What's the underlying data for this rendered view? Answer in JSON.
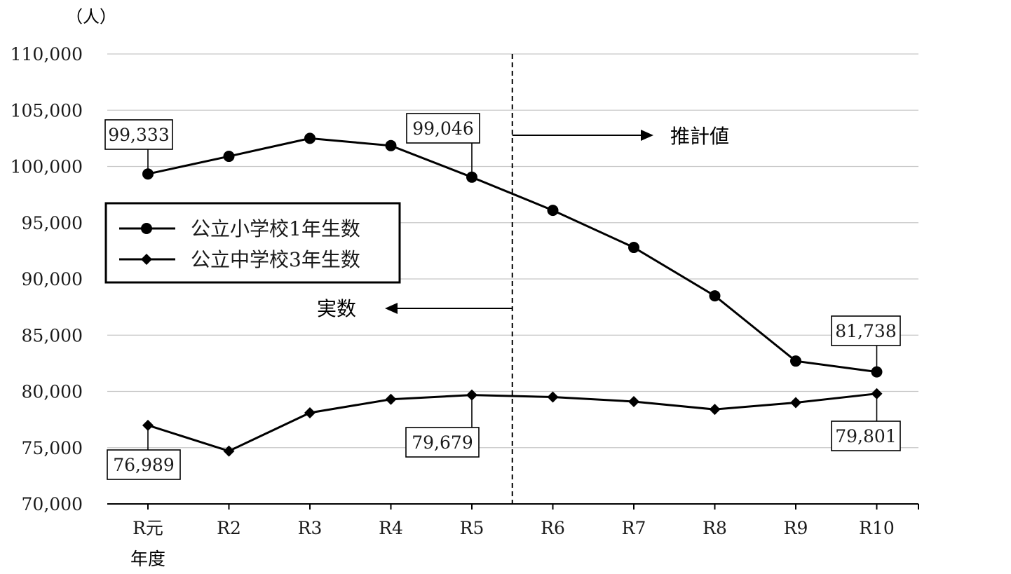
{
  "chart_data": {
    "type": "line",
    "unit_label": "（人）",
    "x_axis_extra_label": "年度",
    "categories": [
      "R元",
      "R2",
      "R3",
      "R4",
      "R5",
      "R6",
      "R7",
      "R8",
      "R9",
      "R10"
    ],
    "ylim": [
      70000,
      110000
    ],
    "yticks": [
      70000,
      75000,
      80000,
      85000,
      90000,
      95000,
      100000,
      105000,
      110000
    ],
    "ytick_labels": [
      "70,000",
      "75,000",
      "80,000",
      "85,000",
      "90,000",
      "95,000",
      "100,000",
      "105,000",
      "110,000"
    ],
    "grid": true,
    "series": [
      {
        "name": "公立小学校1年生数",
        "marker": "circle",
        "values": [
          99333,
          100900,
          102500,
          101850,
          99046,
          96100,
          92800,
          88500,
          82700,
          81738
        ]
      },
      {
        "name": "公立中学校3年生数",
        "marker": "diamond",
        "values": [
          76989,
          74700,
          78100,
          79300,
          79679,
          79500,
          79100,
          78400,
          79000,
          79801
        ]
      }
    ],
    "value_callouts": [
      {
        "series": 0,
        "index": 0,
        "text": "99,333"
      },
      {
        "series": 0,
        "index": 4,
        "text": "99,046"
      },
      {
        "series": 0,
        "index": 9,
        "text": "81,738"
      },
      {
        "series": 1,
        "index": 0,
        "text": "76,989"
      },
      {
        "series": 1,
        "index": 4,
        "text": "79,679"
      },
      {
        "series": 1,
        "index": 9,
        "text": "79,801"
      }
    ],
    "annotations": {
      "actual_label": "実数",
      "estimate_label": "推計値"
    },
    "legend_position": "left-middle"
  },
  "colors": {
    "line": "#000000",
    "grid": "#c8c8c8",
    "text": "#1a1a1a"
  }
}
